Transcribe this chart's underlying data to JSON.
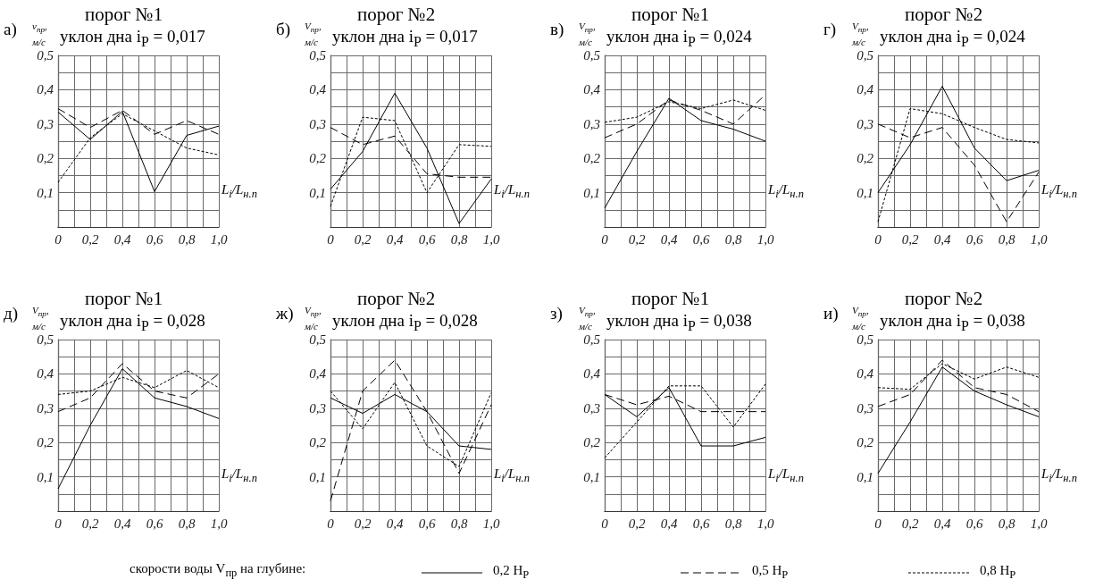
{
  "chart_data": [
    {
      "type": "line",
      "title": "порог №1",
      "subtitle": "уклон дна i$_{P}$ = 0,017",
      "annotations": [
        "а)"
      ],
      "xlabel": "L$_{i}$/L$_{н.п}$",
      "ylabel": "v$_{пр}$, м/с",
      "x": [
        0,
        0.2,
        0.4,
        0.6,
        0.8,
        1
      ],
      "xlim": [
        0,
        1
      ],
      "xticks": [
        {
          "value": 0,
          "label": "0"
        },
        {
          "value": 0.1,
          "label": null
        },
        {
          "value": 0.2,
          "label": "0,2"
        },
        {
          "value": 0.3,
          "label": null
        },
        {
          "value": 0.4,
          "label": "0,4"
        },
        {
          "value": 0.5,
          "label": null
        },
        {
          "value": 0.6,
          "label": "0,6"
        },
        {
          "value": 0.7,
          "label": null
        },
        {
          "value": 0.8,
          "label": "0,8"
        },
        {
          "value": 0.9,
          "label": null
        },
        {
          "value": 1,
          "label": "1,0"
        }
      ],
      "ylim": [
        0,
        0.5
      ],
      "yticks": [
        {
          "value": 0,
          "label": null
        },
        {
          "value": 0.05,
          "label": null
        },
        {
          "value": 0.1,
          "label": "0,1"
        },
        {
          "value": 0.15,
          "label": null
        },
        {
          "value": 0.2,
          "label": "0,2"
        },
        {
          "value": 0.25,
          "label": null
        },
        {
          "value": 0.3,
          "label": "0,3"
        },
        {
          "value": 0.35,
          "label": null
        },
        {
          "value": 0.4,
          "label": "0,4"
        },
        {
          "value": 0.45,
          "label": null
        },
        {
          "value": 0.5,
          "label": "0,5"
        }
      ],
      "grid": true,
      "marker": "none",
      "series": [
        {
          "color": "#000000",
          "line_style": "solid",
          "values": [
            0.335,
            0.255,
            0.337,
            0.103,
            0.267,
            0.294
          ]
        },
        {
          "color": "#000000",
          "line_style": "dashed",
          "values": [
            0.345,
            0.29,
            0.34,
            0.27,
            0.31,
            0.27
          ]
        },
        {
          "color": "#000000",
          "line_style": "dotted",
          "values": [
            0.13,
            0.26,
            0.33,
            0.28,
            0.23,
            0.21
          ]
        }
      ]
    },
    {
      "type": "line",
      "title": "порог №2",
      "subtitle": "уклон дна i$_{P}$ = 0,017",
      "annotations": [
        "б)"
      ],
      "xlabel": "L$_{i}$/L$_{н.п}$",
      "ylabel": "V$_{пр}$, м/с",
      "x": [
        0,
        0.2,
        0.4,
        0.6,
        0.8,
        1
      ],
      "xlim": [
        0,
        1
      ],
      "xticks": [
        {
          "value": 0,
          "label": "0"
        },
        {
          "value": 0.1,
          "label": null
        },
        {
          "value": 0.2,
          "label": "0,2"
        },
        {
          "value": 0.3,
          "label": null
        },
        {
          "value": 0.4,
          "label": "0,4"
        },
        {
          "value": 0.5,
          "label": null
        },
        {
          "value": 0.6,
          "label": "0,6"
        },
        {
          "value": 0.7,
          "label": null
        },
        {
          "value": 0.8,
          "label": "0,8"
        },
        {
          "value": 0.9,
          "label": null
        },
        {
          "value": 1,
          "label": "1,0"
        }
      ],
      "ylim": [
        0,
        0.5
      ],
      "yticks": [
        {
          "value": 0,
          "label": null
        },
        {
          "value": 0.05,
          "label": null
        },
        {
          "value": 0.1,
          "label": "0,1"
        },
        {
          "value": 0.15,
          "label": null
        },
        {
          "value": 0.2,
          "label": "0,2"
        },
        {
          "value": 0.25,
          "label": null
        },
        {
          "value": 0.3,
          "label": "0,3"
        },
        {
          "value": 0.35,
          "label": null
        },
        {
          "value": 0.4,
          "label": "0,4"
        },
        {
          "value": 0.45,
          "label": null
        },
        {
          "value": 0.5,
          "label": "0,5"
        }
      ],
      "grid": true,
      "marker": "none",
      "series": [
        {
          "color": "#000000",
          "line_style": "solid",
          "values": [
            0.11,
            0.22,
            0.39,
            0.23,
            0.01,
            0.14
          ]
        },
        {
          "color": "#000000",
          "line_style": "dashed",
          "values": [
            0.29,
            0.24,
            0.265,
            0.155,
            0.145,
            0.145
          ]
        },
        {
          "color": "#000000",
          "line_style": "dotted",
          "values": [
            0.06,
            0.32,
            0.31,
            0.1,
            0.24,
            0.235
          ]
        }
      ]
    },
    {
      "type": "line",
      "title": "порог №1",
      "subtitle": "уклон дна i$_{P}$ = 0,024",
      "annotations": [
        "в)"
      ],
      "xlabel": "L$_{i}$/L$_{н.п}$",
      "ylabel": "V$_{пр}$, м/с",
      "x": [
        0,
        0.2,
        0.4,
        0.6,
        0.8,
        1
      ],
      "xlim": [
        0,
        1
      ],
      "xticks": [
        {
          "value": 0,
          "label": "0"
        },
        {
          "value": 0.1,
          "label": null
        },
        {
          "value": 0.2,
          "label": "0,2"
        },
        {
          "value": 0.3,
          "label": null
        },
        {
          "value": 0.4,
          "label": "0,4"
        },
        {
          "value": 0.5,
          "label": null
        },
        {
          "value": 0.6,
          "label": "0,6"
        },
        {
          "value": 0.7,
          "label": null
        },
        {
          "value": 0.8,
          "label": "0,8"
        },
        {
          "value": 0.9,
          "label": null
        },
        {
          "value": 1,
          "label": "1,0"
        }
      ],
      "ylim": [
        0,
        0.5
      ],
      "yticks": [
        {
          "value": 0,
          "label": null
        },
        {
          "value": 0.05,
          "label": null
        },
        {
          "value": 0.1,
          "label": "0,1"
        },
        {
          "value": 0.15,
          "label": null
        },
        {
          "value": 0.2,
          "label": "0,2"
        },
        {
          "value": 0.25,
          "label": null
        },
        {
          "value": 0.3,
          "label": "0,3"
        },
        {
          "value": 0.35,
          "label": null
        },
        {
          "value": 0.4,
          "label": "0,4"
        },
        {
          "value": 0.45,
          "label": null
        },
        {
          "value": 0.5,
          "label": "0,5"
        }
      ],
      "grid": true,
      "marker": "none",
      "series": [
        {
          "color": "#000000",
          "line_style": "solid",
          "values": [
            0.055,
            0.22,
            0.375,
            0.31,
            0.285,
            0.25
          ]
        },
        {
          "color": "#000000",
          "line_style": "dashed",
          "values": [
            0.26,
            0.3,
            0.37,
            0.34,
            0.3,
            0.385
          ]
        },
        {
          "color": "#000000",
          "line_style": "dotted",
          "values": [
            0.305,
            0.32,
            0.365,
            0.345,
            0.37,
            0.34
          ]
        }
      ]
    },
    {
      "type": "line",
      "title": "порог №2",
      "subtitle": "уклон дна i$_{P}$ = 0,024",
      "annotations": [
        "г)"
      ],
      "xlabel": "L$_{i}$/L$_{н.п}$",
      "ylabel": "V$_{пр}$, м/с",
      "x": [
        0,
        0.2,
        0.4,
        0.6,
        0.8,
        1
      ],
      "xlim": [
        0,
        1
      ],
      "xticks": [
        {
          "value": 0,
          "label": "0"
        },
        {
          "value": 0.1,
          "label": null
        },
        {
          "value": 0.2,
          "label": "0,2"
        },
        {
          "value": 0.3,
          "label": null
        },
        {
          "value": 0.4,
          "label": "0,4"
        },
        {
          "value": 0.5,
          "label": null
        },
        {
          "value": 0.6,
          "label": "0,6"
        },
        {
          "value": 0.7,
          "label": null
        },
        {
          "value": 0.8,
          "label": "0,8"
        },
        {
          "value": 0.9,
          "label": null
        },
        {
          "value": 1,
          "label": "1,0"
        }
      ],
      "ylim": [
        0,
        0.5
      ],
      "yticks": [
        {
          "value": 0,
          "label": null
        },
        {
          "value": 0.05,
          "label": null
        },
        {
          "value": 0.1,
          "label": "0,1"
        },
        {
          "value": 0.15,
          "label": null
        },
        {
          "value": 0.2,
          "label": "0,2"
        },
        {
          "value": 0.25,
          "label": null
        },
        {
          "value": 0.3,
          "label": "0,3"
        },
        {
          "value": 0.35,
          "label": null
        },
        {
          "value": 0.4,
          "label": "0,4"
        },
        {
          "value": 0.45,
          "label": null
        },
        {
          "value": 0.5,
          "label": "0,5"
        }
      ],
      "grid": true,
      "marker": "none",
      "series": [
        {
          "color": "#000000",
          "line_style": "solid",
          "values": [
            0.1,
            0.24,
            0.41,
            0.23,
            0.135,
            0.165
          ]
        },
        {
          "color": "#000000",
          "line_style": "dashed",
          "values": [
            0.3,
            0.26,
            0.29,
            0.18,
            0.015,
            0.16
          ]
        },
        {
          "color": "#000000",
          "line_style": "dotted",
          "values": [
            0.015,
            0.345,
            0.33,
            0.29,
            0.255,
            0.245
          ]
        }
      ]
    },
    {
      "type": "line",
      "title": "порог №1",
      "subtitle": "уклон дна i$_{P}$ = 0,028",
      "annotations": [
        "д)"
      ],
      "xlabel": "L$_{i}$/L$_{н.п}$",
      "ylabel": "V$_{пр}$, м/с",
      "x": [
        0,
        0.2,
        0.4,
        0.6,
        0.8,
        1
      ],
      "xlim": [
        0,
        1
      ],
      "xticks": [
        {
          "value": 0,
          "label": "0"
        },
        {
          "value": 0.1,
          "label": null
        },
        {
          "value": 0.2,
          "label": "0,2"
        },
        {
          "value": 0.3,
          "label": null
        },
        {
          "value": 0.4,
          "label": "0,4"
        },
        {
          "value": 0.5,
          "label": null
        },
        {
          "value": 0.6,
          "label": "0,6"
        },
        {
          "value": 0.7,
          "label": null
        },
        {
          "value": 0.8,
          "label": "0,8"
        },
        {
          "value": 0.9,
          "label": null
        },
        {
          "value": 1,
          "label": "1,0"
        }
      ],
      "ylim": [
        0,
        0.5
      ],
      "yticks": [
        {
          "value": 0,
          "label": null
        },
        {
          "value": 0.05,
          "label": null
        },
        {
          "value": 0.1,
          "label": "0,1"
        },
        {
          "value": 0.15,
          "label": null
        },
        {
          "value": 0.2,
          "label": "0,2"
        },
        {
          "value": 0.25,
          "label": null
        },
        {
          "value": 0.3,
          "label": "0,3"
        },
        {
          "value": 0.35,
          "label": null
        },
        {
          "value": 0.4,
          "label": "0,4"
        },
        {
          "value": 0.45,
          "label": null
        },
        {
          "value": 0.5,
          "label": "0,5"
        }
      ],
      "grid": true,
      "marker": "none",
      "series": [
        {
          "color": "#000000",
          "line_style": "solid",
          "values": [
            0.065,
            0.25,
            0.415,
            0.33,
            0.305,
            0.27
          ]
        },
        {
          "color": "#000000",
          "line_style": "dashed",
          "values": [
            0.29,
            0.33,
            0.43,
            0.35,
            0.33,
            0.4
          ]
        },
        {
          "color": "#000000",
          "line_style": "dotted",
          "values": [
            0.34,
            0.35,
            0.39,
            0.36,
            0.41,
            0.36
          ]
        }
      ]
    },
    {
      "type": "line",
      "title": "порог №2",
      "subtitle": "уклон дна i$_{P}$ = 0,028",
      "annotations": [
        "ж)"
      ],
      "xlabel": "L$_{i}$/L$_{н.п}$",
      "ylabel": "V$_{пр}$, м/с",
      "x": [
        0,
        0.2,
        0.4,
        0.6,
        0.8,
        1
      ],
      "xlim": [
        0,
        1
      ],
      "xticks": [
        {
          "value": 0,
          "label": "0"
        },
        {
          "value": 0.1,
          "label": null
        },
        {
          "value": 0.2,
          "label": "0,2"
        },
        {
          "value": 0.3,
          "label": null
        },
        {
          "value": 0.4,
          "label": "0,4"
        },
        {
          "value": 0.5,
          "label": null
        },
        {
          "value": 0.6,
          "label": "0,6"
        },
        {
          "value": 0.7,
          "label": null
        },
        {
          "value": 0.8,
          "label": "0,8"
        },
        {
          "value": 0.9,
          "label": null
        },
        {
          "value": 1,
          "label": "1,0"
        }
      ],
      "ylim": [
        0,
        0.5
      ],
      "yticks": [
        {
          "value": 0,
          "label": null
        },
        {
          "value": 0.05,
          "label": null
        },
        {
          "value": 0.1,
          "label": "0,1"
        },
        {
          "value": 0.15,
          "label": null
        },
        {
          "value": 0.2,
          "label": "0,2"
        },
        {
          "value": 0.25,
          "label": null
        },
        {
          "value": 0.3,
          "label": "0,3"
        },
        {
          "value": 0.35,
          "label": null
        },
        {
          "value": 0.4,
          "label": "0,4"
        },
        {
          "value": 0.45,
          "label": null
        },
        {
          "value": 0.5,
          "label": "0,5"
        }
      ],
      "grid": true,
      "marker": "none",
      "series": [
        {
          "color": "#000000",
          "line_style": "solid",
          "values": [
            0.33,
            0.285,
            0.34,
            0.29,
            0.19,
            0.18
          ]
        },
        {
          "color": "#000000",
          "line_style": "dashed",
          "values": [
            0.03,
            0.35,
            0.44,
            0.29,
            0.11,
            0.31
          ]
        },
        {
          "color": "#000000",
          "line_style": "dotted",
          "values": [
            0.35,
            0.24,
            0.375,
            0.19,
            0.13,
            0.345
          ]
        }
      ]
    },
    {
      "type": "line",
      "title": "порог №1",
      "subtitle": "уклон дна i$_{P}$ = 0,038",
      "annotations": [
        "з)"
      ],
      "xlabel": "L$_{i}$/L$_{н.п}$",
      "ylabel": "V$_{пр}$, м/с",
      "x": [
        0,
        0.2,
        0.4,
        0.6,
        0.8,
        1
      ],
      "xlim": [
        0,
        1
      ],
      "xticks": [
        {
          "value": 0,
          "label": "0"
        },
        {
          "value": 0.1,
          "label": null
        },
        {
          "value": 0.2,
          "label": "0,2"
        },
        {
          "value": 0.3,
          "label": null
        },
        {
          "value": 0.4,
          "label": "0,4"
        },
        {
          "value": 0.5,
          "label": null
        },
        {
          "value": 0.6,
          "label": "0,6"
        },
        {
          "value": 0.7,
          "label": null
        },
        {
          "value": 0.8,
          "label": "0,8"
        },
        {
          "value": 0.9,
          "label": null
        },
        {
          "value": 1,
          "label": "1,0"
        }
      ],
      "ylim": [
        0,
        0.5
      ],
      "yticks": [
        {
          "value": 0,
          "label": null
        },
        {
          "value": 0.05,
          "label": null
        },
        {
          "value": 0.1,
          "label": "0,1"
        },
        {
          "value": 0.15,
          "label": null
        },
        {
          "value": 0.2,
          "label": "0,2"
        },
        {
          "value": 0.25,
          "label": null
        },
        {
          "value": 0.3,
          "label": "0,3"
        },
        {
          "value": 0.35,
          "label": null
        },
        {
          "value": 0.4,
          "label": "0,4"
        },
        {
          "value": 0.45,
          "label": null
        },
        {
          "value": 0.5,
          "label": "0,5"
        }
      ],
      "grid": true,
      "marker": "none",
      "series": [
        {
          "color": "#000000",
          "line_style": "solid",
          "values": [
            0.34,
            0.275,
            0.36,
            0.19,
            0.19,
            0.215
          ]
        },
        {
          "color": "#000000",
          "line_style": "dashed",
          "values": [
            0.34,
            0.31,
            0.335,
            0.29,
            0.29,
            0.29
          ]
        },
        {
          "color": "#000000",
          "line_style": "dotted",
          "values": [
            0.155,
            0.26,
            0.365,
            0.365,
            0.245,
            0.37
          ]
        }
      ]
    },
    {
      "type": "line",
      "title": "порог №2",
      "subtitle": "уклон дна i$_{P}$ = 0,038",
      "annotations": [
        "и)"
      ],
      "xlabel": "L$_{i}$/L$_{н.п}$",
      "ylabel": "V$_{пр}$, м/с",
      "legend": "bottom",
      "legend_title": "скорости воды V$_{пр}$ на глубине:",
      "x": [
        0,
        0.2,
        0.4,
        0.6,
        0.8,
        1
      ],
      "xlim": [
        0,
        1
      ],
      "xticks": [
        {
          "value": 0,
          "label": "0"
        },
        {
          "value": 0.1,
          "label": null
        },
        {
          "value": 0.2,
          "label": "0,2"
        },
        {
          "value": 0.3,
          "label": null
        },
        {
          "value": 0.4,
          "label": "0,4"
        },
        {
          "value": 0.5,
          "label": null
        },
        {
          "value": 0.6,
          "label": "0,6"
        },
        {
          "value": 0.7,
          "label": null
        },
        {
          "value": 0.8,
          "label": "0,8"
        },
        {
          "value": 0.9,
          "label": null
        },
        {
          "value": 1,
          "label": "1,0"
        }
      ],
      "ylim": [
        0,
        0.5
      ],
      "yticks": [
        {
          "value": 0,
          "label": null
        },
        {
          "value": 0.05,
          "label": null
        },
        {
          "value": 0.1,
          "label": "0,1"
        },
        {
          "value": 0.15,
          "label": null
        },
        {
          "value": 0.2,
          "label": "0,2"
        },
        {
          "value": 0.25,
          "label": null
        },
        {
          "value": 0.3,
          "label": "0,3"
        },
        {
          "value": 0.35,
          "label": null
        },
        {
          "value": 0.4,
          "label": "0,4"
        },
        {
          "value": 0.45,
          "label": null
        },
        {
          "value": 0.5,
          "label": "0,5"
        }
      ],
      "grid": true,
      "marker": "none",
      "series": [
        {
          "name": "0,2 H$_{P}$",
          "color": "#000000",
          "line_style": "solid",
          "values": [
            0.11,
            0.26,
            0.42,
            0.35,
            0.31,
            0.275
          ]
        },
        {
          "name": "0,5 H$_{P}$",
          "color": "#000000",
          "line_style": "dashed",
          "values": [
            0.305,
            0.34,
            0.44,
            0.36,
            0.34,
            0.29
          ]
        },
        {
          "name": "0,8 H$_{P}$",
          "color": "#000000",
          "line_style": "dotted",
          "values": [
            0.36,
            0.355,
            0.43,
            0.385,
            0.42,
            0.39
          ]
        }
      ]
    }
  ]
}
